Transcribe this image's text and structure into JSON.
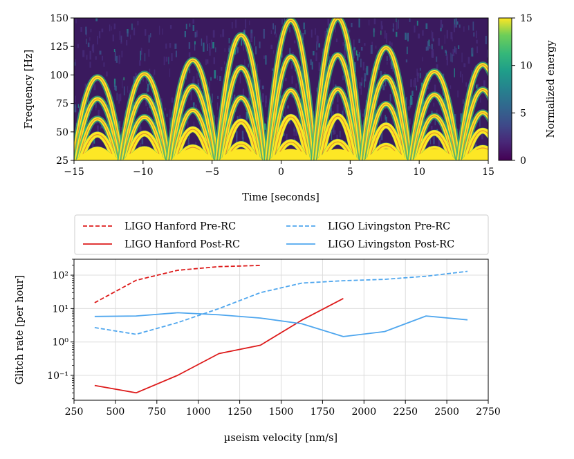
{
  "chart_data": [
    {
      "type": "heatmap",
      "xlabel": "Time [seconds]",
      "ylabel": "Frequency [Hz]",
      "xlim": [
        -15,
        15
      ],
      "ylim": [
        25,
        150
      ],
      "xticks": [
        -15,
        -10,
        -5,
        0,
        5,
        10,
        15
      ],
      "yticks": [
        25,
        50,
        75,
        100,
        125,
        150
      ],
      "colorbar": {
        "label": "Normalized energy",
        "range": [
          0,
          15
        ],
        "ticks": [
          0,
          5,
          10,
          15
        ],
        "colormap": "viridis"
      },
      "arch_peaks": [
        {
          "t": -13.3,
          "f": 98
        },
        {
          "t": -9.9,
          "f": 101
        },
        {
          "t": -6.4,
          "f": 113
        },
        {
          "t": -2.9,
          "f": 135
        },
        {
          "t": 0.7,
          "f": 148
        },
        {
          "t": 4.1,
          "f": 150
        },
        {
          "t": 7.6,
          "f": 124
        },
        {
          "t": 11.1,
          "f": 103
        },
        {
          "t": 14.6,
          "f": 109
        }
      ],
      "arch_half_width_s": 1.75,
      "overlay_color": "#d98c30"
    },
    {
      "type": "line",
      "xlabel": "µseism velocity [nm/s]",
      "ylabel": "Glitch rate [per hour]",
      "xlim": [
        250,
        2750
      ],
      "ylim": [
        0.018,
        300
      ],
      "yscale": "log",
      "xticks": [
        250,
        500,
        750,
        1000,
        1250,
        1500,
        1750,
        2000,
        2250,
        2500,
        2750
      ],
      "yticks": [
        0.1,
        1,
        10,
        100
      ],
      "ytick_labels": [
        "10⁻¹",
        "10⁰",
        "10¹",
        "10²"
      ],
      "grid": true,
      "legend_position": "top",
      "series": [
        {
          "name": "LIGO Hanford Pre-RC",
          "color": "#dd1a1a",
          "dash": "dashed",
          "x": [
            375,
            625,
            875,
            1125,
            1375
          ],
          "y": [
            15,
            70,
            140,
            180,
            195
          ]
        },
        {
          "name": "LIGO Livingston Pre-RC",
          "color": "#4ea6ee",
          "dash": "dashed",
          "x": [
            375,
            625,
            875,
            1125,
            1375,
            1625,
            1875,
            2125,
            2375,
            2625
          ],
          "y": [
            2.7,
            1.7,
            3.8,
            10,
            30,
            58,
            68,
            75,
            93,
            130
          ]
        },
        {
          "name": "LIGO Hanford Post-RC",
          "color": "#dd1a1a",
          "dash": "solid",
          "x": [
            375,
            625,
            875,
            1125,
            1375,
            1625,
            1875
          ],
          "y": [
            0.05,
            0.03,
            0.1,
            0.45,
            0.8,
            4.5,
            20
          ]
        },
        {
          "name": "LIGO Livingston Post-RC",
          "color": "#4ea6ee",
          "dash": "solid",
          "x": [
            375,
            625,
            875,
            1125,
            1375,
            1625,
            1875,
            2125,
            2375,
            2625
          ],
          "y": [
            5.8,
            6,
            7.5,
            6.5,
            5.2,
            3.5,
            1.45,
            2.05,
            6,
            4.6
          ]
        }
      ]
    }
  ]
}
